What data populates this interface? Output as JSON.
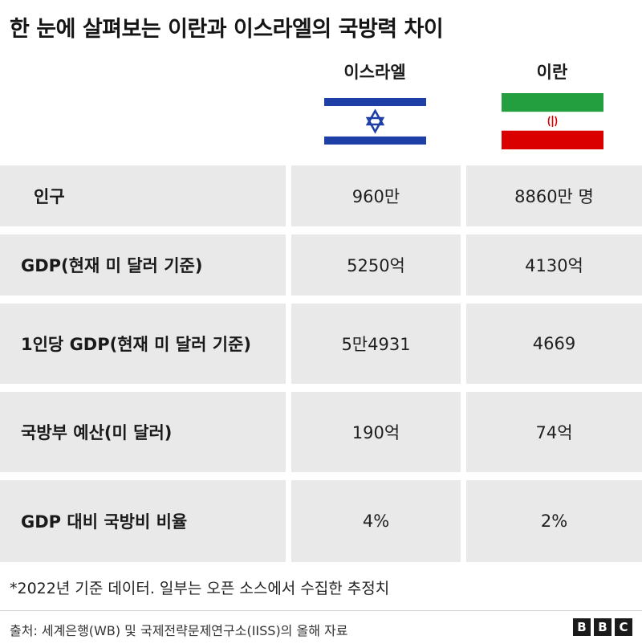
{
  "title": "한 눈에 살펴보는 이란과 이스라엘의 국방력 차이",
  "chart_data": {
    "type": "table",
    "columns": [
      "이스라엘",
      "이란"
    ],
    "rows": [
      {
        "label": "인구",
        "values": [
          "960만",
          "8860만 명"
        ]
      },
      {
        "label": "GDP(현재 미 달러 기준)",
        "values": [
          "5250억",
          "4130억"
        ]
      },
      {
        "label": "1인당 GDP(현재 미 달러 기준)",
        "values": [
          "5만4931",
          "4669"
        ]
      },
      {
        "label": "국방부 예산(미 달러)",
        "values": [
          "190억",
          "74억"
        ]
      },
      {
        "label": "GDP 대비 국방비 비율",
        "values": [
          "4%",
          "2%"
        ]
      }
    ]
  },
  "flags": {
    "israel": {
      "blue": "#1e3fa6",
      "white": "#ffffff"
    },
    "iran": {
      "green": "#239f40",
      "white": "#ffffff",
      "red": "#da0000"
    }
  },
  "footnote": "*2022년 기준 데이터. 일부는 오픈 소스에서 수집한 추정치",
  "source": "출처: 세계은행(WB) 및 국제전략문제연구소(IISS)의 올해 자료",
  "logo": [
    "B",
    "B",
    "C"
  ]
}
